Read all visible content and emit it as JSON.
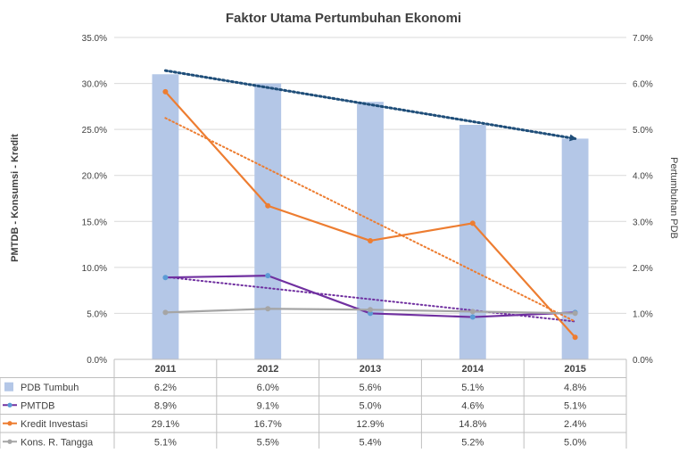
{
  "chart_data": {
    "type": "bar+line",
    "title": "Faktor Utama Pertumbuhan  Ekonomi",
    "ylabel_left": "PMTDB - Konsumsi - Kredit",
    "ylabel_right": "Pertumbuhan PDB",
    "categories": [
      "2011",
      "2012",
      "2013",
      "2014",
      "2015"
    ],
    "left_axis": {
      "min": 0,
      "max": 35,
      "ticks": [
        "0.0%",
        "5.0%",
        "10.0%",
        "15.0%",
        "20.0%",
        "25.0%",
        "30.0%",
        "35.0%"
      ]
    },
    "right_axis": {
      "min": 0,
      "max": 7,
      "ticks": [
        "0.0%",
        "1.0%",
        "2.0%",
        "3.0%",
        "4.0%",
        "5.0%",
        "6.0%",
        "7.0%"
      ]
    },
    "series": [
      {
        "name": "PDB Tumbuh",
        "kind": "bar",
        "axis": "right",
        "color": "#B4C7E7",
        "values": [
          6.2,
          6.0,
          5.6,
          5.1,
          4.8
        ],
        "labels": [
          "6.2%",
          "6.0%",
          "5.6%",
          "5.1%",
          "4.8%"
        ]
      },
      {
        "name": "PMTDB",
        "kind": "line",
        "axis": "left",
        "color": "#7030A0",
        "marker": "#5B9BD5",
        "values": [
          8.9,
          9.1,
          5.0,
          4.6,
          5.1
        ],
        "labels": [
          "8.9%",
          "9.1%",
          "5.0%",
          "4.6%",
          "5.1%"
        ]
      },
      {
        "name": "Kredit Investasi",
        "kind": "line",
        "axis": "left",
        "color": "#ED7D31",
        "marker": "#ED7D31",
        "values": [
          29.1,
          16.7,
          12.9,
          14.8,
          2.4
        ],
        "labels": [
          "29.1%",
          "16.7%",
          "12.9%",
          "14.8%",
          "2.4%"
        ]
      },
      {
        "name": "Kons. R. Tangga",
        "kind": "line",
        "axis": "left",
        "color": "#A5A5A5",
        "marker": "#A5A5A5",
        "values": [
          5.1,
          5.5,
          5.4,
          5.2,
          5.0
        ],
        "labels": [
          "5.1%",
          "5.5%",
          "5.4%",
          "5.2%",
          "5.0%"
        ]
      }
    ],
    "trendlines": [
      {
        "series": "PDB Tumbuh",
        "axis": "right",
        "color": "#1F4E79",
        "arrow": true
      },
      {
        "series": "PMTDB",
        "axis": "left",
        "color": "#7030A0"
      },
      {
        "series": "Kredit Investasi",
        "axis": "left",
        "color": "#ED7D31"
      }
    ],
    "data_table": true
  }
}
